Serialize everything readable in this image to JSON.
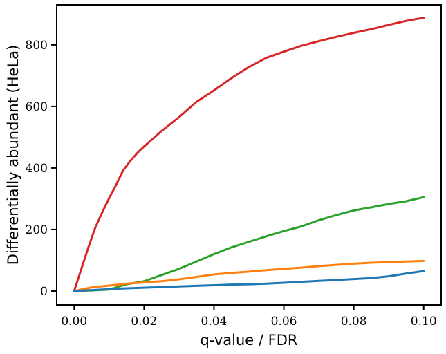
{
  "chart_data": {
    "type": "line",
    "xlabel": "q-value / FDR",
    "ylabel": "Differentially abundant (HeLa)",
    "xlim": [
      -0.005,
      0.105
    ],
    "ylim": [
      -45,
      930
    ],
    "xticks": [
      0.0,
      0.02,
      0.04,
      0.06,
      0.08,
      0.1
    ],
    "xtick_labels": [
      "0.00",
      "0.02",
      "0.04",
      "0.06",
      "0.08",
      "0.10"
    ],
    "yticks": [
      0,
      200,
      400,
      600,
      800
    ],
    "ytick_labels": [
      "0",
      "200",
      "400",
      "600",
      "800"
    ],
    "grid": false,
    "legend": "none",
    "series": [
      {
        "color": "#d62728",
        "x": [
          0,
          0.002,
          0.004,
          0.006,
          0.008,
          0.01,
          0.012,
          0.014,
          0.016,
          0.018,
          0.02,
          0.025,
          0.03,
          0.035,
          0.04,
          0.045,
          0.05,
          0.055,
          0.06,
          0.065,
          0.07,
          0.075,
          0.08,
          0.085,
          0.09,
          0.095,
          0.1
        ],
        "values": [
          0,
          70,
          140,
          205,
          255,
          302,
          345,
          392,
          422,
          448,
          470,
          520,
          565,
          615,
          652,
          692,
          728,
          758,
          778,
          797,
          812,
          826,
          839,
          851,
          865,
          878,
          888
        ]
      },
      {
        "color": "#2ca02c",
        "x": [
          0,
          0.005,
          0.01,
          0.012,
          0.015,
          0.02,
          0.025,
          0.03,
          0.035,
          0.04,
          0.045,
          0.05,
          0.055,
          0.06,
          0.065,
          0.07,
          0.075,
          0.08,
          0.085,
          0.09,
          0.095,
          0.1
        ],
        "values": [
          0,
          2,
          5,
          12,
          22,
          32,
          52,
          72,
          96,
          120,
          142,
          160,
          178,
          195,
          210,
          230,
          247,
          262,
          272,
          283,
          292,
          305
        ]
      },
      {
        "color": "#ff7f0e",
        "x": [
          0,
          0.005,
          0.01,
          0.015,
          0.02,
          0.025,
          0.03,
          0.035,
          0.04,
          0.045,
          0.05,
          0.055,
          0.06,
          0.065,
          0.07,
          0.075,
          0.08,
          0.085,
          0.09,
          0.095,
          0.1
        ],
        "values": [
          0,
          12,
          18,
          24,
          28,
          32,
          38,
          46,
          54,
          59,
          63,
          68,
          72,
          76,
          81,
          85,
          89,
          92,
          94,
          96,
          98
        ]
      },
      {
        "color": "#1f77b4",
        "x": [
          0,
          0.005,
          0.01,
          0.015,
          0.02,
          0.025,
          0.03,
          0.035,
          0.04,
          0.045,
          0.05,
          0.055,
          0.06,
          0.065,
          0.07,
          0.075,
          0.08,
          0.085,
          0.09,
          0.095,
          0.1
        ],
        "values": [
          0,
          3,
          6,
          9,
          11,
          13,
          15,
          17,
          19,
          21,
          22,
          24,
          27,
          30,
          33,
          36,
          39,
          42,
          48,
          57,
          65
        ]
      }
    ]
  }
}
